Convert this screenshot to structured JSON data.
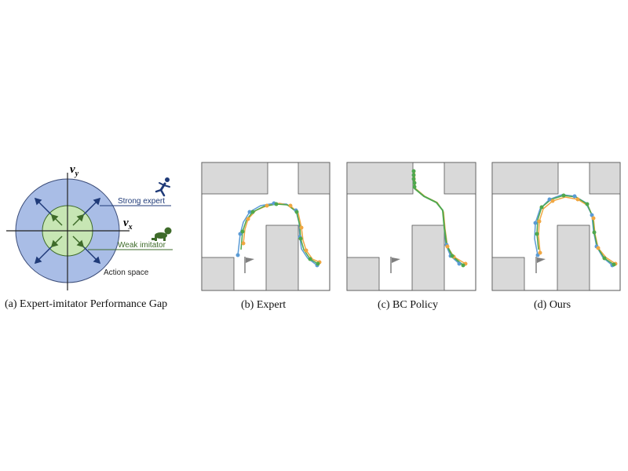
{
  "panel_a": {
    "axis_y_label": "v",
    "axis_y_sub": "y",
    "axis_x_label": "v",
    "axis_x_sub": "x",
    "strong_label": "Strong expert",
    "weak_label": "Weak imitator",
    "space_label": "Action space",
    "caption": "(a) Expert-imitator Performance Gap",
    "icons": [
      "running-person-icon",
      "crawling-baby-icon"
    ],
    "colors": {
      "outer": "#a9bde6",
      "inner": "#c7e6b4",
      "strong": "#1f3a78",
      "weak": "#3e6b2a"
    }
  },
  "panels": [
    {
      "caption": "(b) Expert"
    },
    {
      "caption": "(c) BC Policy"
    },
    {
      "caption": "(d) Ours"
    }
  ],
  "colors": {
    "trajectory_blue": "#5b9bd5",
    "trajectory_orange": "#f0a742",
    "trajectory_green": "#4ea84e",
    "obstacle": "#d9d9d9",
    "flag": "#7f7f7f"
  },
  "icons": [
    "goal-flag-icon"
  ]
}
